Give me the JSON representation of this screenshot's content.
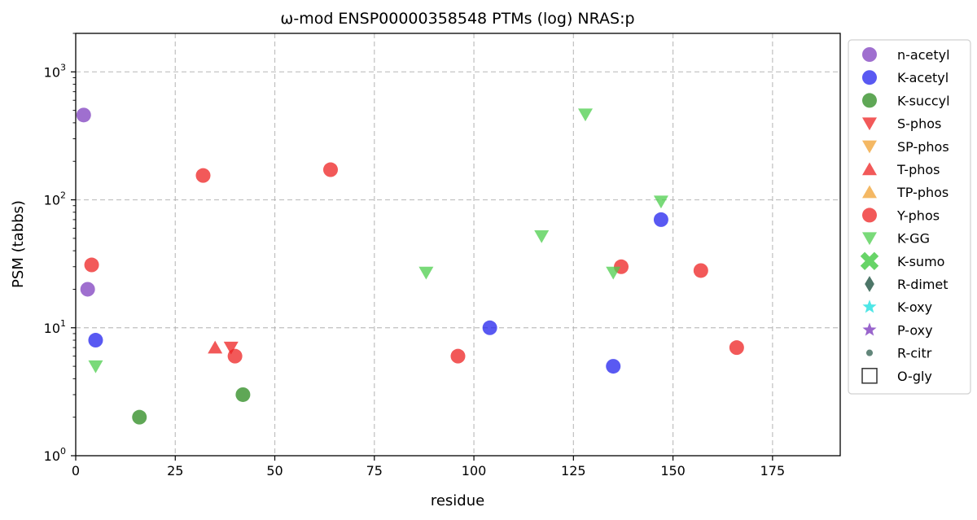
{
  "chart_data": {
    "type": "scatter",
    "title": "ω-mod ENSP00000358548 PTMs (log) NRAS:p",
    "xlabel": "residue",
    "ylabel": "PSM (tabbs)",
    "xlim": [
      0,
      192
    ],
    "ylim": [
      1,
      2000
    ],
    "yscale": "log",
    "grid": true,
    "legend_position": "outside-right",
    "x_ticks": [
      {
        "value": 0,
        "label": "0"
      },
      {
        "value": 25,
        "label": "25"
      },
      {
        "value": 50,
        "label": "50"
      },
      {
        "value": 75,
        "label": "75"
      },
      {
        "value": 100,
        "label": "100"
      },
      {
        "value": 125,
        "label": "125"
      },
      {
        "value": 150,
        "label": "150"
      },
      {
        "value": 175,
        "label": "175"
      }
    ],
    "y_ticks": [
      {
        "value": 1,
        "base": "10",
        "exp": "0"
      },
      {
        "value": 10,
        "base": "10",
        "exp": "1"
      },
      {
        "value": 100,
        "base": "10",
        "exp": "2"
      },
      {
        "value": 1000,
        "base": "10",
        "exp": "3"
      }
    ],
    "series": [
      {
        "name": "n-acetyl",
        "marker": "circle",
        "color": "#7f3fbf",
        "points": [
          {
            "x": 2,
            "y": 460
          },
          {
            "x": 3,
            "y": 20
          }
        ]
      },
      {
        "name": "K-acetyl",
        "marker": "circle",
        "color": "#2222ee",
        "points": [
          {
            "x": 5,
            "y": 8
          },
          {
            "x": 104,
            "y": 10
          },
          {
            "x": 135,
            "y": 5
          },
          {
            "x": 147,
            "y": 70
          }
        ]
      },
      {
        "name": "K-succyl",
        "marker": "circle",
        "color": "#2a8a1e",
        "points": [
          {
            "x": 16,
            "y": 2
          },
          {
            "x": 42,
            "y": 3
          }
        ]
      },
      {
        "name": "S-phos",
        "marker": "triangle-down",
        "color": "#ee2222",
        "points": [
          {
            "x": 39,
            "y": 7
          }
        ]
      },
      {
        "name": "SP-phos",
        "marker": "triangle-down",
        "color": "#f0a030",
        "points": []
      },
      {
        "name": "T-phos",
        "marker": "triangle-up",
        "color": "#ee2222",
        "points": [
          {
            "x": 35,
            "y": 7
          }
        ]
      },
      {
        "name": "TP-phos",
        "marker": "triangle-up",
        "color": "#f0a030",
        "points": []
      },
      {
        "name": "Y-phos",
        "marker": "circle",
        "color": "#ee2222",
        "points": [
          {
            "x": 4,
            "y": 31
          },
          {
            "x": 32,
            "y": 155
          },
          {
            "x": 40,
            "y": 6
          },
          {
            "x": 64,
            "y": 172
          },
          {
            "x": 96,
            "y": 6
          },
          {
            "x": 137,
            "y": 30
          },
          {
            "x": 157,
            "y": 28
          },
          {
            "x": 166,
            "y": 7
          }
        ]
      },
      {
        "name": "K-GG",
        "marker": "triangle-down",
        "color": "#4ccd4c",
        "points": [
          {
            "x": 5,
            "y": 5
          },
          {
            "x": 88,
            "y": 27
          },
          {
            "x": 117,
            "y": 52
          },
          {
            "x": 128,
            "y": 465
          },
          {
            "x": 135,
            "y": 27
          },
          {
            "x": 147,
            "y": 97
          }
        ]
      },
      {
        "name": "K-sumo",
        "marker": "x",
        "color": "#4ccd4c",
        "points": []
      },
      {
        "name": "R-dimet",
        "marker": "diamond",
        "color": "#2e5e4e",
        "points": []
      },
      {
        "name": "K-oxy",
        "marker": "star",
        "color": "#22e0e0",
        "points": []
      },
      {
        "name": "P-oxy",
        "marker": "star",
        "color": "#7f3fbf",
        "points": []
      },
      {
        "name": "R-citr",
        "marker": "small-circle",
        "color": "#2e5e4e",
        "points": []
      },
      {
        "name": "O-gly",
        "marker": "square-open",
        "color": "#333333",
        "points": []
      }
    ]
  }
}
